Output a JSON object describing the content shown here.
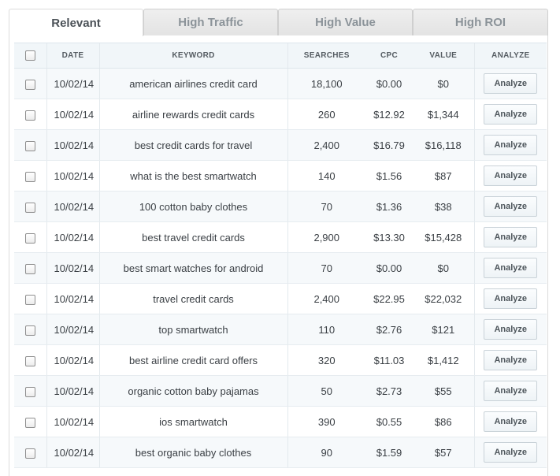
{
  "tabs": [
    {
      "label": "Relevant",
      "active": true
    },
    {
      "label": "High Traffic",
      "active": false
    },
    {
      "label": "High Value",
      "active": false
    },
    {
      "label": "High ROI",
      "active": false
    }
  ],
  "table": {
    "headers": {
      "date": "DATE",
      "keyword": "KEYWORD",
      "searches": "SEARCHES",
      "cpc": "CPC",
      "value": "VALUE",
      "analyze": "ANALYZE"
    },
    "analyze_label": "Analyze",
    "rows": [
      {
        "date": "10/02/14",
        "keyword": "american airlines credit card",
        "searches": "18,100",
        "cpc": "$0.00",
        "value": "$0"
      },
      {
        "date": "10/02/14",
        "keyword": "airline rewards credit cards",
        "searches": "260",
        "cpc": "$12.92",
        "value": "$1,344"
      },
      {
        "date": "10/02/14",
        "keyword": "best credit cards for travel",
        "searches": "2,400",
        "cpc": "$16.79",
        "value": "$16,118"
      },
      {
        "date": "10/02/14",
        "keyword": "what is the best smartwatch",
        "searches": "140",
        "cpc": "$1.56",
        "value": "$87"
      },
      {
        "date": "10/02/14",
        "keyword": "100 cotton baby clothes",
        "searches": "70",
        "cpc": "$1.36",
        "value": "$38"
      },
      {
        "date": "10/02/14",
        "keyword": "best travel credit cards",
        "searches": "2,900",
        "cpc": "$13.30",
        "value": "$15,428"
      },
      {
        "date": "10/02/14",
        "keyword": "best smart watches for android",
        "searches": "70",
        "cpc": "$0.00",
        "value": "$0"
      },
      {
        "date": "10/02/14",
        "keyword": "travel credit cards",
        "searches": "2,400",
        "cpc": "$22.95",
        "value": "$22,032"
      },
      {
        "date": "10/02/14",
        "keyword": "top smartwatch",
        "searches": "110",
        "cpc": "$2.76",
        "value": "$121"
      },
      {
        "date": "10/02/14",
        "keyword": "best airline credit card offers",
        "searches": "320",
        "cpc": "$11.03",
        "value": "$1,412"
      },
      {
        "date": "10/02/14",
        "keyword": "organic cotton baby pajamas",
        "searches": "50",
        "cpc": "$2.73",
        "value": "$55"
      },
      {
        "date": "10/02/14",
        "keyword": "ios smartwatch",
        "searches": "390",
        "cpc": "$0.55",
        "value": "$86"
      },
      {
        "date": "10/02/14",
        "keyword": "best organic baby clothes",
        "searches": "90",
        "cpc": "$1.59",
        "value": "$57"
      }
    ]
  }
}
